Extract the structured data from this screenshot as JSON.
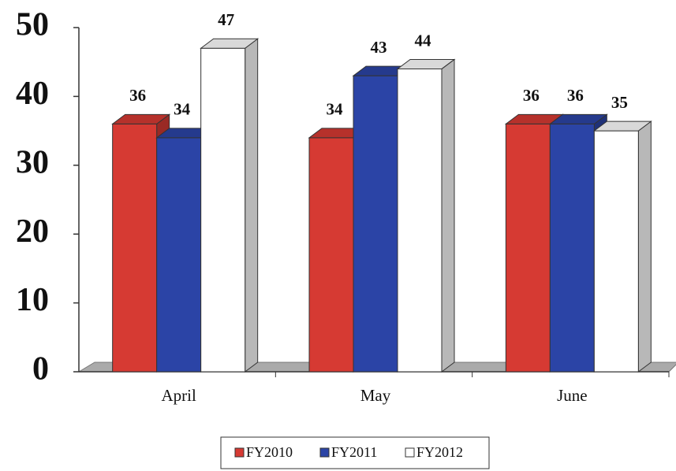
{
  "chart_data": {
    "type": "bar3d",
    "categories": [
      "April",
      "May",
      "June"
    ],
    "series": [
      {
        "name": "FY2010",
        "color": "#d63a33",
        "values": [
          36,
          34,
          36
        ]
      },
      {
        "name": "FY2011",
        "color": "#2b44a6",
        "values": [
          34,
          43,
          36
        ]
      },
      {
        "name": "FY2012",
        "color": "#ffffff",
        "values": [
          47,
          44,
          35
        ]
      }
    ],
    "ylim": [
      0,
      50
    ],
    "yticks": [
      0,
      10,
      20,
      30,
      40,
      50
    ],
    "legend": "bottom"
  }
}
